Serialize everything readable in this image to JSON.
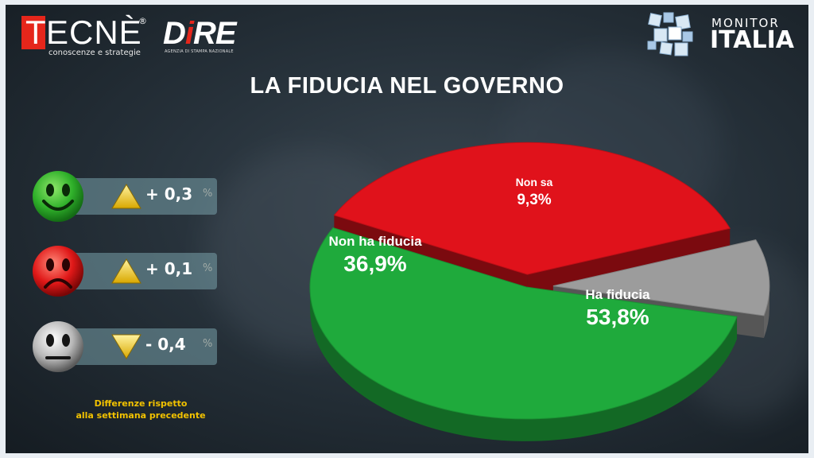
{
  "brand": {
    "tecne_first": "T",
    "tecne_rest": "ECNÈ",
    "tecne_reg": "®",
    "tecne_tagline": "conoscenze e strategie",
    "dire_pre": "D",
    "dire_i": "i",
    "dire_post": "RE",
    "dire_tagline": "AGENZIA DI STAMPA NAZIONALE",
    "monitor_line1": "MONITOR",
    "monitor_line2": "ITALIA"
  },
  "title": "LA FIDUCIA NEL GOVERNO",
  "changes": [
    {
      "mood": "happy",
      "direction": "up",
      "value": "+ 0,3",
      "unit": "%"
    },
    {
      "mood": "sad",
      "direction": "up",
      "value": "+ 0,1",
      "unit": "%"
    },
    {
      "mood": "neutral",
      "direction": "down",
      "value": "- 0,4",
      "unit": "%"
    }
  ],
  "note_line1": "Differenze rispetto",
  "note_line2": "alla settimana precedente",
  "chart_data": {
    "type": "pie",
    "title": "LA FIDUCIA NEL GOVERNO",
    "slices": [
      {
        "label": "Ha fiducia",
        "value": 53.8,
        "value_label": "53,8%",
        "color": "#1faa3c"
      },
      {
        "label": "Non ha fiducia",
        "value": 36.9,
        "value_label": "36,9%",
        "color": "#e0121b"
      },
      {
        "label": "Non sa",
        "value": 9.3,
        "value_label": "9,3%",
        "color": "#9c9c9c"
      }
    ],
    "exploded": true,
    "style": "3d"
  },
  "colors": {
    "accent": "#e5261b",
    "note": "#f2c200",
    "green": "#1faa3c",
    "red": "#e0121b",
    "gray": "#9c9c9c"
  }
}
